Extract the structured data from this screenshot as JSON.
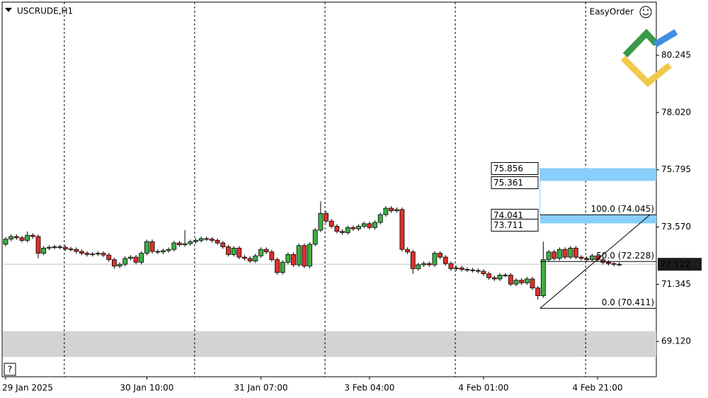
{
  "chart_data": {
    "type": "candlestick",
    "symbol": "USCRUDE,H1",
    "panel_button": "EasyOrder",
    "help": "?",
    "categories": [
      "29 Jan 2025",
      null,
      null,
      null,
      null,
      null,
      null,
      null,
      null,
      null,
      null,
      null,
      null,
      null,
      null,
      null,
      null,
      null,
      null,
      null,
      null,
      null,
      null,
      null,
      null,
      null,
      "30 Jan 10:00",
      null,
      null,
      null,
      null,
      null,
      null,
      null,
      null,
      null,
      null,
      null,
      null,
      null,
      null,
      null,
      null,
      null,
      null,
      null,
      null,
      "31 Jan 07:00",
      null,
      null,
      null,
      null,
      null,
      null,
      null,
      null,
      null,
      null,
      null,
      null,
      null,
      null,
      null,
      null,
      null,
      null,
      null,
      "3 Feb 04:00",
      null,
      null,
      null,
      null,
      null,
      null,
      null,
      null,
      null,
      null,
      null,
      null,
      null,
      null,
      null,
      null,
      null,
      null,
      null,
      null,
      "4 Feb 01:00",
      null,
      null,
      null,
      null,
      null,
      null,
      null,
      null,
      null,
      null,
      null,
      null,
      null,
      null,
      null,
      null,
      null,
      null,
      null,
      null,
      "4 Feb 21:00",
      null,
      null,
      null,
      null
    ],
    "open": [
      72.9,
      73.1,
      73.2,
      73.15,
      73.05,
      73.25,
      73.2,
      72.55,
      72.75,
      72.78,
      72.8,
      72.78,
      72.72,
      72.7,
      72.62,
      72.55,
      72.5,
      72.52,
      72.55,
      72.48,
      72.3,
      72.05,
      72.12,
      72.35,
      72.4,
      72.2,
      72.55,
      73.0,
      72.62,
      72.6,
      72.65,
      72.7,
      72.95,
      72.88,
      72.92,
      73.0,
      73.05,
      73.12,
      73.1,
      73.05,
      72.95,
      72.8,
      72.5,
      72.75,
      72.4,
      72.35,
      72.25,
      72.45,
      72.7,
      72.6,
      72.3,
      71.8,
      72.2,
      72.5,
      72.1,
      72.85,
      72.05,
      72.9,
      73.45,
      74.1,
      73.8,
      73.6,
      73.4,
      73.35,
      73.55,
      73.5,
      73.6,
      73.7,
      73.55,
      73.75,
      74.05,
      74.3,
      74.2,
      74.25,
      72.7,
      72.6,
      71.95,
      72.1,
      72.15,
      72.1,
      72.55,
      72.4,
      72.15,
      71.95,
      71.98,
      71.92,
      71.9,
      71.88,
      71.85,
      71.75,
      71.6,
      71.55,
      71.7,
      71.7,
      71.35,
      71.5,
      71.4,
      71.55,
      71.2,
      70.9,
      72.3,
      72.6,
      72.35,
      72.7,
      72.4,
      72.75,
      72.4,
      72.35,
      72.3,
      72.45,
      72.3,
      72.2,
      72.15,
      72.12
    ],
    "high": [
      73.18,
      73.28,
      73.28,
      73.23,
      73.4,
      73.33,
      73.28,
      72.83,
      72.86,
      72.88,
      72.88,
      72.86,
      72.8,
      72.78,
      72.7,
      72.63,
      72.6,
      72.63,
      72.63,
      72.56,
      72.38,
      72.2,
      72.43,
      72.48,
      72.48,
      72.63,
      73.08,
      73.08,
      72.7,
      72.73,
      72.78,
      73.03,
      73.03,
      73.45,
      73.08,
      73.13,
      73.2,
      73.2,
      73.18,
      73.13,
      73.03,
      72.88,
      72.83,
      72.83,
      72.48,
      72.43,
      72.53,
      72.78,
      72.78,
      72.68,
      72.38,
      72.28,
      72.58,
      72.58,
      72.93,
      72.93,
      72.98,
      73.53,
      74.56,
      74.18,
      73.88,
      73.68,
      73.48,
      73.63,
      73.63,
      73.68,
      73.78,
      73.78,
      73.83,
      74.13,
      74.38,
      74.38,
      74.33,
      74.33,
      72.78,
      72.68,
      72.18,
      72.23,
      72.23,
      72.63,
      72.63,
      72.48,
      72.23,
      72.06,
      72.06,
      72.0,
      71.98,
      71.96,
      71.93,
      71.83,
      71.68,
      71.78,
      71.78,
      71.78,
      71.58,
      71.58,
      71.63,
      71.63,
      71.28,
      73.0,
      72.68,
      72.68,
      72.78,
      72.78,
      72.83,
      72.83,
      72.48,
      72.43,
      72.53,
      72.53,
      72.38,
      72.28,
      72.2,
      72.2
    ],
    "low": [
      72.82,
      73.02,
      73.07,
      72.97,
      72.97,
      73.12,
      72.35,
      72.47,
      72.67,
      72.7,
      72.7,
      72.64,
      72.62,
      72.54,
      72.47,
      72.42,
      72.42,
      72.44,
      72.4,
      72.22,
      71.95,
      71.97,
      72.04,
      72.27,
      72.12,
      72.12,
      72.47,
      72.54,
      72.52,
      72.52,
      72.57,
      72.62,
      72.8,
      72.8,
      72.84,
      72.92,
      72.97,
      73.02,
      72.97,
      72.87,
      72.72,
      72.42,
      72.42,
      72.32,
      72.27,
      72.17,
      72.17,
      72.37,
      72.52,
      72.22,
      71.72,
      71.72,
      72.12,
      72.02,
      72.02,
      71.97,
      71.97,
      72.82,
      73.37,
      73.72,
      73.52,
      73.32,
      73.27,
      73.27,
      73.42,
      73.42,
      73.52,
      73.47,
      73.47,
      73.67,
      73.97,
      74.12,
      74.12,
      72.62,
      72.52,
      71.75,
      71.87,
      72.02,
      72.02,
      72.02,
      72.32,
      72.07,
      71.87,
      71.87,
      71.84,
      71.82,
      71.8,
      71.77,
      71.67,
      71.52,
      71.47,
      71.47,
      71.62,
      71.27,
      71.27,
      71.32,
      71.32,
      71.12,
      70.75,
      70.82,
      72.22,
      72.27,
      72.27,
      72.32,
      72.32,
      72.32,
      72.27,
      72.22,
      72.22,
      72.22,
      72.12,
      72.07,
      72.04,
      72.04
    ],
    "close": [
      73.1,
      73.2,
      73.15,
      73.05,
      73.25,
      73.2,
      72.55,
      72.75,
      72.78,
      72.8,
      72.78,
      72.72,
      72.7,
      72.62,
      72.55,
      72.5,
      72.52,
      72.55,
      72.48,
      72.3,
      72.05,
      72.12,
      72.35,
      72.4,
      72.2,
      72.55,
      73.0,
      72.62,
      72.6,
      72.65,
      72.7,
      72.95,
      72.88,
      72.92,
      73.0,
      73.05,
      73.12,
      73.1,
      73.05,
      72.95,
      72.8,
      72.5,
      72.75,
      72.4,
      72.35,
      72.25,
      72.45,
      72.7,
      72.6,
      72.3,
      71.8,
      72.2,
      72.5,
      72.1,
      72.85,
      72.05,
      72.9,
      73.45,
      74.1,
      73.8,
      73.6,
      73.4,
      73.35,
      73.55,
      73.5,
      73.6,
      73.7,
      73.55,
      73.75,
      74.05,
      74.3,
      74.2,
      74.25,
      72.7,
      72.6,
      71.95,
      72.1,
      72.15,
      72.1,
      72.55,
      72.4,
      72.15,
      71.95,
      71.98,
      71.92,
      71.9,
      71.88,
      71.85,
      71.75,
      71.6,
      71.55,
      71.7,
      71.7,
      71.35,
      71.5,
      71.4,
      71.55,
      71.2,
      70.9,
      72.3,
      72.6,
      72.35,
      72.7,
      72.4,
      72.75,
      72.4,
      72.35,
      72.3,
      72.45,
      72.3,
      72.2,
      72.15,
      72.12,
      72.122
    ],
    "up_color": "#3cb043",
    "down_color": "#e0302b",
    "ylim": [
      67.75,
      82.31
    ],
    "yticks": [
      80.245,
      {
        "value": 78.02,
        "label": "78.020"
      },
      75.795,
      {
        "value": 73.57,
        "label": "73.570"
      },
      71.345,
      {
        "value": 69.12,
        "label": "69.120"
      }
    ],
    "grid": true,
    "last_price": 72.122,
    "price_zones": [
      {
        "top": 75.856,
        "bottom": 75.361,
        "color": "#87cefa"
      },
      {
        "top": 74.041,
        "bottom": 73.711,
        "color": "#87cefa"
      }
    ],
    "shaded_band": {
      "top": 69.52,
      "bottom": 68.52,
      "color": "#d3d3d3"
    },
    "fibonacci": [
      {
        "value": 74.045,
        "label": "100.0 (74.045)"
      },
      {
        "value": 72.228,
        "label": "50.0 (72.228)"
      },
      {
        "value": 70.411,
        "label": "0.0 (70.411)"
      }
    ]
  }
}
